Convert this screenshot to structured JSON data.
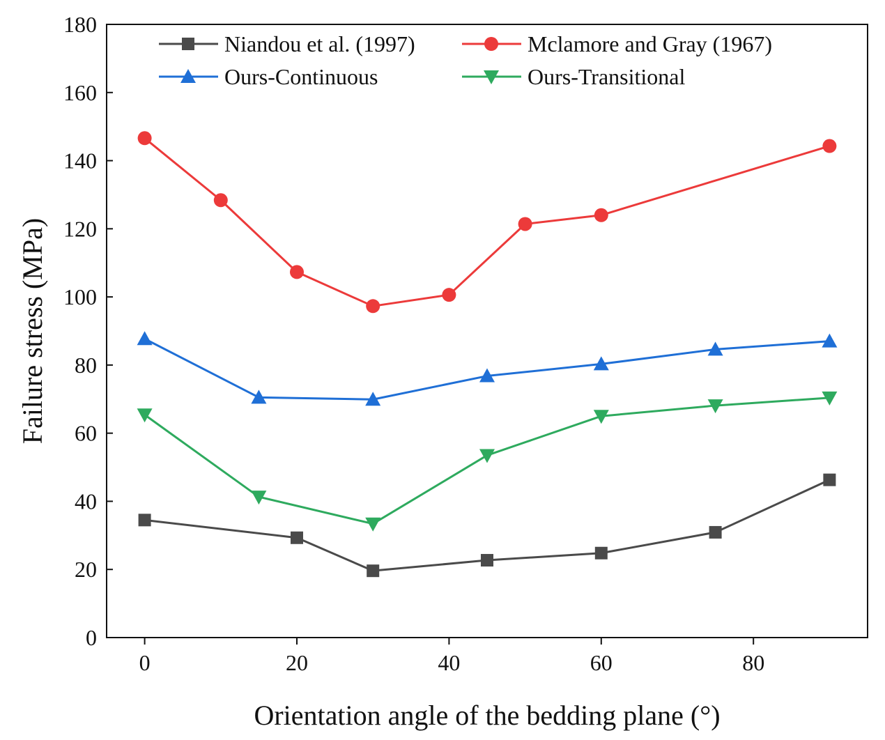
{
  "chart_data": {
    "type": "line",
    "xlabel": "Orientation angle of the bedding plane (°)",
    "ylabel": "Failure stress (MPa)",
    "xlim": [
      -5,
      95
    ],
    "ylim": [
      0,
      180
    ],
    "xticks": [
      0,
      20,
      40,
      60,
      80
    ],
    "yticks": [
      0,
      20,
      40,
      60,
      80,
      100,
      120,
      140,
      160,
      180
    ],
    "legend_position": "top",
    "series": [
      {
        "name": "Niandou et al. (1997)",
        "color": "#4a4a4a",
        "marker": "square",
        "x": [
          0,
          20,
          30,
          45,
          60,
          75,
          90
        ],
        "y": [
          34.5,
          29.3,
          19.6,
          22.7,
          24.8,
          30.9,
          46.3
        ]
      },
      {
        "name": "Mclamore and Gray (1967)",
        "color": "#ec3a3a",
        "marker": "circle",
        "x": [
          0,
          10,
          20,
          30,
          40,
          50,
          60,
          90
        ],
        "y": [
          146.6,
          128.4,
          107.3,
          97.3,
          100.6,
          121.4,
          124.0,
          144.3
        ]
      },
      {
        "name": "Ours-Continuous",
        "color": "#1f6fd6",
        "marker": "triangle-up",
        "x": [
          0,
          15,
          30,
          45,
          60,
          75,
          90
        ],
        "y": [
          87.7,
          70.5,
          69.9,
          76.8,
          80.3,
          84.6,
          87.0
        ]
      },
      {
        "name": "Ours-Transitional",
        "color": "#2eaa5e",
        "marker": "triangle-down",
        "x": [
          0,
          15,
          30,
          45,
          60,
          75,
          90
        ],
        "y": [
          65.4,
          41.3,
          33.4,
          53.5,
          65.0,
          68.1,
          70.4
        ]
      }
    ]
  }
}
